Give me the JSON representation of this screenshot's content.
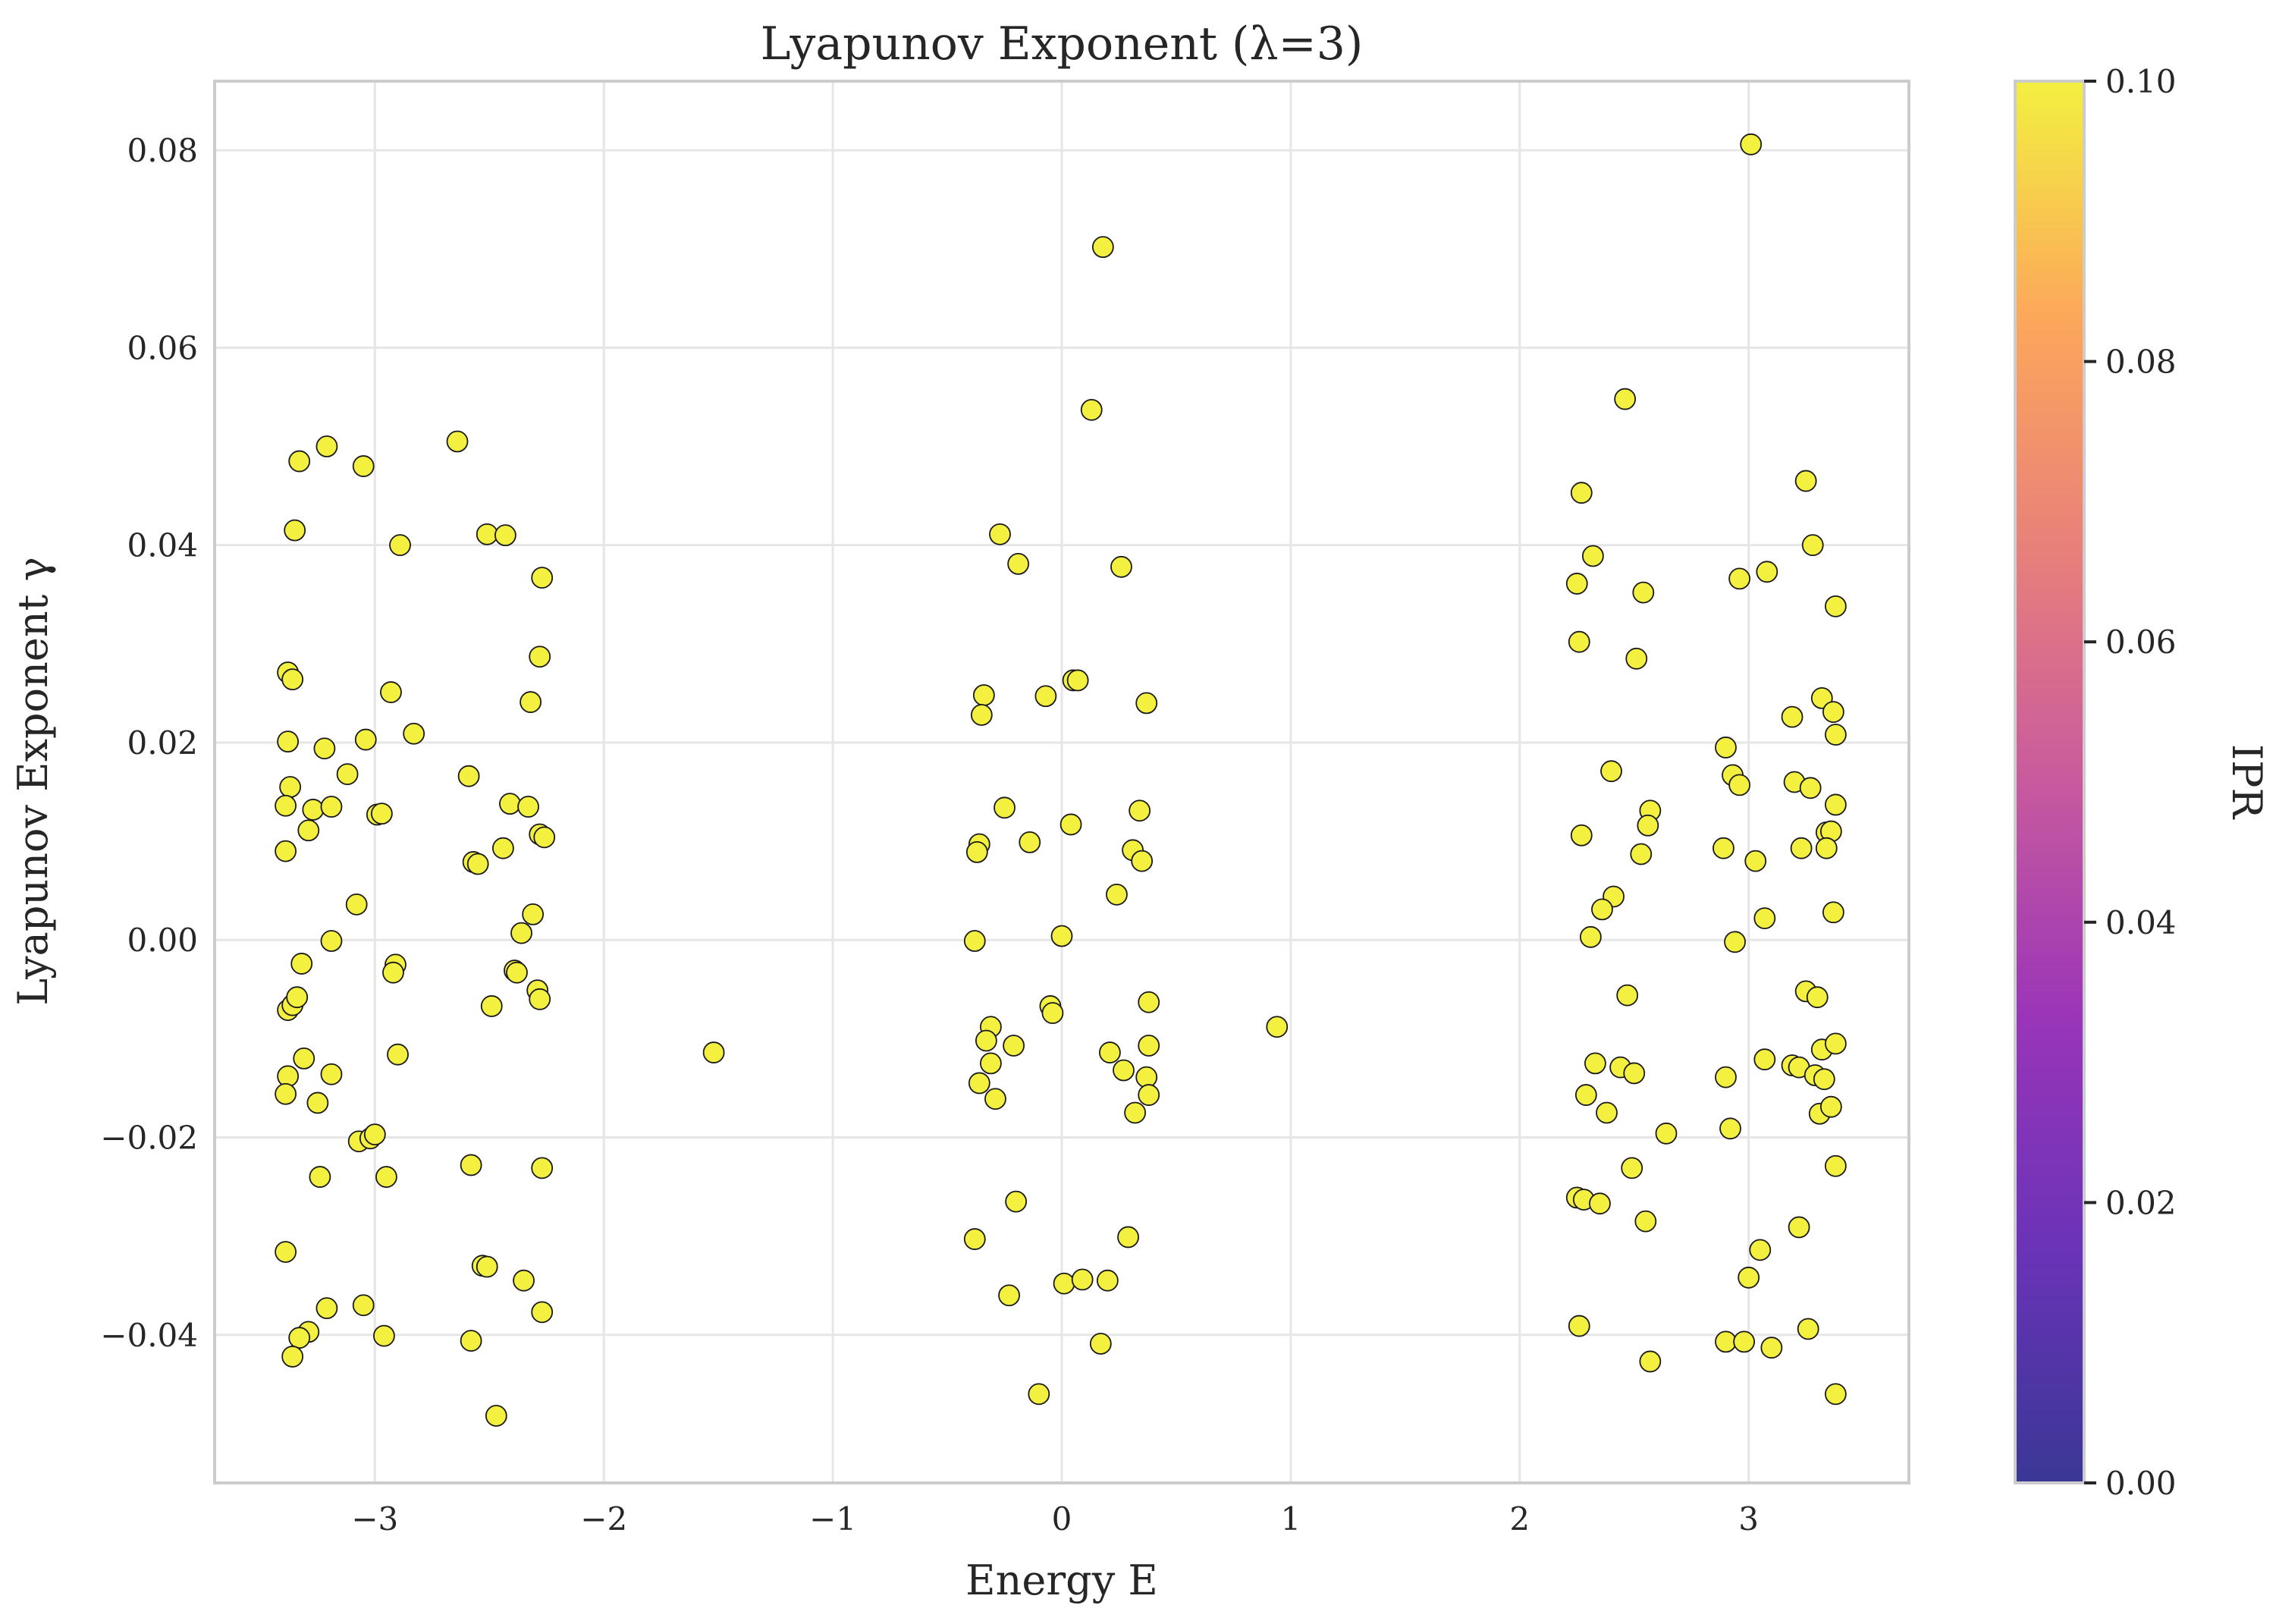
{
  "chart_data": {
    "type": "scatter",
    "title": "Lyapunov Exponent (λ=3)",
    "xlabel": "Energy E",
    "ylabel": "Lyapunov Exponent γ",
    "xlim": [
      -3.7,
      3.7
    ],
    "ylim": [
      -0.055,
      0.087
    ],
    "x_ticks": [
      -3,
      -2,
      -1,
      0,
      1,
      2,
      3
    ],
    "x_tick_labels": [
      "−3",
      "−2",
      "−1",
      "0",
      "1",
      "2",
      "3"
    ],
    "y_ticks": [
      -0.04,
      -0.02,
      0.0,
      0.02,
      0.04,
      0.06,
      0.08
    ],
    "y_tick_labels": [
      "−0.04",
      "−0.02",
      "0.00",
      "0.02",
      "0.04",
      "0.06",
      "0.08"
    ],
    "grid": true,
    "marker_color": "#f3f040",
    "colorbar": {
      "label": "IPR",
      "range": [
        0.0,
        0.1
      ],
      "ticks": [
        0.0,
        0.02,
        0.04,
        0.06,
        0.08,
        0.1
      ],
      "tick_labels": [
        "0.00",
        "0.02",
        "0.04",
        "0.06",
        "0.08",
        "0.10"
      ],
      "colormap": [
        "#3a3795",
        "#6a33b8",
        "#9a35b8",
        "#c85a9e",
        "#e8807a",
        "#fca85a",
        "#f3f040"
      ]
    },
    "points": [
      [
        -3.33,
        0.0485
      ],
      [
        -3.21,
        0.05
      ],
      [
        -3.05,
        0.048
      ],
      [
        -2.64,
        0.0505
      ],
      [
        -3.35,
        0.0415
      ],
      [
        -2.89,
        0.04
      ],
      [
        -2.51,
        0.0411
      ],
      [
        -2.43,
        0.041
      ],
      [
        -2.27,
        0.0367
      ],
      [
        -3.38,
        0.0271
      ],
      [
        -3.36,
        0.0264
      ],
      [
        -2.93,
        0.0251
      ],
      [
        -2.28,
        0.0287
      ],
      [
        -2.32,
        0.0241
      ],
      [
        -3.38,
        0.0201
      ],
      [
        -3.22,
        0.0194
      ],
      [
        -3.04,
        0.0203
      ],
      [
        -2.83,
        0.0209
      ],
      [
        -3.12,
        0.0168
      ],
      [
        -2.59,
        0.0166
      ],
      [
        -3.37,
        0.0155
      ],
      [
        -3.39,
        0.0136
      ],
      [
        -3.27,
        0.0132
      ],
      [
        -3.19,
        0.0135
      ],
      [
        -2.99,
        0.0127
      ],
      [
        -2.97,
        0.0128
      ],
      [
        -2.41,
        0.0138
      ],
      [
        -2.33,
        0.0135
      ],
      [
        -3.29,
        0.0111
      ],
      [
        -2.28,
        0.0107
      ],
      [
        -2.26,
        0.0104
      ],
      [
        -2.44,
        0.0093
      ],
      [
        -3.39,
        0.009
      ],
      [
        -2.57,
        0.0079
      ],
      [
        -2.55,
        0.0077
      ],
      [
        -3.08,
        0.0036
      ],
      [
        -2.31,
        0.0026
      ],
      [
        -2.36,
        0.0007
      ],
      [
        -3.19,
        -0.0001
      ],
      [
        -3.32,
        -0.0024
      ],
      [
        -2.91,
        -0.0025
      ],
      [
        -2.92,
        -0.0033
      ],
      [
        -2.39,
        -0.0031
      ],
      [
        -2.38,
        -0.0033
      ],
      [
        -2.29,
        -0.0051
      ],
      [
        -2.28,
        -0.006
      ],
      [
        -2.49,
        -0.0067
      ],
      [
        -3.38,
        -0.0071
      ],
      [
        -3.36,
        -0.0066
      ],
      [
        -3.34,
        -0.0058
      ],
      [
        -2.9,
        -0.0116
      ],
      [
        -3.31,
        -0.012
      ],
      [
        -3.19,
        -0.0136
      ],
      [
        -3.38,
        -0.0138
      ],
      [
        -3.39,
        -0.0156
      ],
      [
        -3.25,
        -0.0165
      ],
      [
        -3.07,
        -0.0204
      ],
      [
        -3.02,
        -0.0201
      ],
      [
        -3.0,
        -0.0197
      ],
      [
        -2.95,
        -0.024
      ],
      [
        -3.24,
        -0.024
      ],
      [
        -2.58,
        -0.0228
      ],
      [
        -2.27,
        -0.0231
      ],
      [
        -3.39,
        -0.0316
      ],
      [
        -2.53,
        -0.033
      ],
      [
        -2.51,
        -0.0331
      ],
      [
        -2.35,
        -0.0345
      ],
      [
        -3.21,
        -0.0373
      ],
      [
        -3.05,
        -0.037
      ],
      [
        -2.27,
        -0.0377
      ],
      [
        -3.29,
        -0.0397
      ],
      [
        -3.33,
        -0.0403
      ],
      [
        -2.96,
        -0.0401
      ],
      [
        -2.58,
        -0.0406
      ],
      [
        -3.36,
        -0.0422
      ],
      [
        -2.47,
        -0.0482
      ],
      [
        -1.52,
        -0.0114
      ],
      [
        0.18,
        0.0702
      ],
      [
        0.13,
        0.0537
      ],
      [
        -0.27,
        0.0411
      ],
      [
        -0.19,
        0.0381
      ],
      [
        0.26,
        0.0378
      ],
      [
        0.05,
        0.0263
      ],
      [
        0.07,
        0.0263
      ],
      [
        -0.34,
        0.0248
      ],
      [
        -0.35,
        0.0228
      ],
      [
        -0.07,
        0.0247
      ],
      [
        0.37,
        0.024
      ],
      [
        -0.25,
        0.0134
      ],
      [
        0.34,
        0.0131
      ],
      [
        0.04,
        0.0117
      ],
      [
        -0.14,
        0.0099
      ],
      [
        -0.36,
        0.0097
      ],
      [
        -0.37,
        0.0089
      ],
      [
        0.31,
        0.0091
      ],
      [
        0.35,
        0.008
      ],
      [
        0.24,
        0.0046
      ],
      [
        -0.38,
        -0.0001
      ],
      [
        0.0,
        0.0004
      ],
      [
        -0.05,
        -0.0067
      ],
      [
        -0.04,
        -0.0074
      ],
      [
        0.38,
        -0.0063
      ],
      [
        -0.31,
        -0.0088
      ],
      [
        -0.33,
        -0.0102
      ],
      [
        -0.21,
        -0.0107
      ],
      [
        0.21,
        -0.0114
      ],
      [
        0.38,
        -0.0107
      ],
      [
        -0.31,
        -0.0125
      ],
      [
        0.27,
        -0.0132
      ],
      [
        -0.36,
        -0.0145
      ],
      [
        0.37,
        -0.0139
      ],
      [
        0.38,
        -0.0157
      ],
      [
        -0.29,
        -0.0161
      ],
      [
        0.32,
        -0.0175
      ],
      [
        -0.2,
        -0.0265
      ],
      [
        -0.38,
        -0.0303
      ],
      [
        0.29,
        -0.0301
      ],
      [
        0.01,
        -0.0348
      ],
      [
        0.09,
        -0.0344
      ],
      [
        0.2,
        -0.0345
      ],
      [
        -0.23,
        -0.036
      ],
      [
        0.17,
        -0.0409
      ],
      [
        -0.1,
        -0.046
      ],
      [
        0.94,
        -0.0088
      ],
      [
        3.01,
        0.0806
      ],
      [
        2.46,
        0.0548
      ],
      [
        3.25,
        0.0465
      ],
      [
        2.27,
        0.0453
      ],
      [
        3.28,
        0.04
      ],
      [
        2.32,
        0.0389
      ],
      [
        3.08,
        0.0373
      ],
      [
        2.96,
        0.0366
      ],
      [
        2.25,
        0.0361
      ],
      [
        2.54,
        0.0352
      ],
      [
        3.38,
        0.0338
      ],
      [
        2.26,
        0.0302
      ],
      [
        2.51,
        0.0285
      ],
      [
        3.32,
        0.0245
      ],
      [
        3.37,
        0.0231
      ],
      [
        3.19,
        0.0226
      ],
      [
        3.38,
        0.0208
      ],
      [
        2.9,
        0.0195
      ],
      [
        2.4,
        0.0171
      ],
      [
        2.93,
        0.0167
      ],
      [
        2.96,
        0.0157
      ],
      [
        3.2,
        0.016
      ],
      [
        3.27,
        0.0154
      ],
      [
        3.38,
        0.0137
      ],
      [
        2.57,
        0.0131
      ],
      [
        2.56,
        0.0116
      ],
      [
        2.27,
        0.0106
      ],
      [
        3.34,
        0.0109
      ],
      [
        3.36,
        0.011
      ],
      [
        2.89,
        0.0093
      ],
      [
        3.23,
        0.0093
      ],
      [
        3.34,
        0.0093
      ],
      [
        2.53,
        0.0087
      ],
      [
        3.03,
        0.008
      ],
      [
        2.41,
        0.0044
      ],
      [
        2.36,
        0.0031
      ],
      [
        3.37,
        0.0028
      ],
      [
        3.07,
        0.0022
      ],
      [
        2.31,
        0.0003
      ],
      [
        2.94,
        -0.0002
      ],
      [
        3.25,
        -0.0052
      ],
      [
        3.3,
        -0.0058
      ],
      [
        2.47,
        -0.0056
      ],
      [
        3.32,
        -0.0111
      ],
      [
        3.38,
        -0.0105
      ],
      [
        3.07,
        -0.0121
      ],
      [
        2.33,
        -0.0125
      ],
      [
        2.44,
        -0.0129
      ],
      [
        3.19,
        -0.0127
      ],
      [
        3.22,
        -0.0129
      ],
      [
        2.5,
        -0.0135
      ],
      [
        2.9,
        -0.0139
      ],
      [
        3.29,
        -0.0137
      ],
      [
        3.33,
        -0.0141
      ],
      [
        2.29,
        -0.0157
      ],
      [
        2.38,
        -0.0175
      ],
      [
        3.31,
        -0.0176
      ],
      [
        3.36,
        -0.0169
      ],
      [
        2.64,
        -0.0196
      ],
      [
        2.92,
        -0.0191
      ],
      [
        2.49,
        -0.0231
      ],
      [
        3.38,
        -0.0229
      ],
      [
        2.25,
        -0.0261
      ],
      [
        2.28,
        -0.0263
      ],
      [
        2.35,
        -0.0267
      ],
      [
        2.55,
        -0.0285
      ],
      [
        3.22,
        -0.0291
      ],
      [
        3.05,
        -0.0314
      ],
      [
        3.0,
        -0.0342
      ],
      [
        2.26,
        -0.0391
      ],
      [
        3.26,
        -0.0394
      ],
      [
        2.9,
        -0.0407
      ],
      [
        2.98,
        -0.0407
      ],
      [
        3.1,
        -0.0413
      ],
      [
        2.57,
        -0.0427
      ],
      [
        3.38,
        -0.046
      ]
    ]
  }
}
